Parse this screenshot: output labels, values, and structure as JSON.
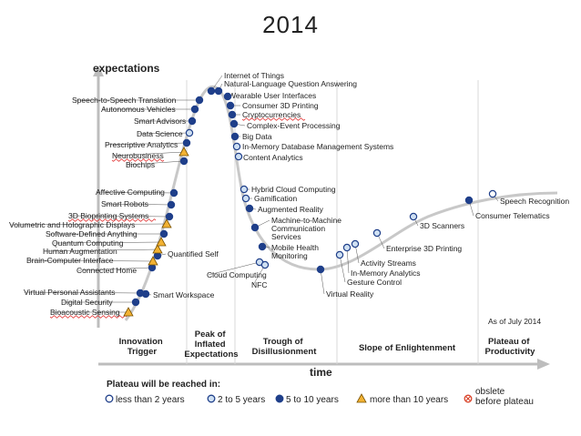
{
  "slide_title": "2014",
  "axes": {
    "y_label": "expectations",
    "x_label": "time"
  },
  "as_of": "As of July 2014",
  "phases": [
    {
      "lines": [
        "Innovation",
        "Trigger"
      ]
    },
    {
      "lines": [
        "Peak of",
        "Inflated",
        "Expectations"
      ]
    },
    {
      "lines": [
        "Trough of",
        "Disillusionment"
      ]
    },
    {
      "lines": [
        "Slope of Enlightenment"
      ]
    },
    {
      "lines": [
        "Plateau of",
        "Productivity"
      ]
    }
  ],
  "legend": {
    "title": "Plateau will be reached in:",
    "items": [
      {
        "label": "less than 2 years",
        "marker": "open-circle"
      },
      {
        "label": "2 to 5 years",
        "marker": "light-blue-circle"
      },
      {
        "label": "5 to 10 years",
        "marker": "dark-blue-circle"
      },
      {
        "label": "more than 10 years",
        "marker": "orange-triangle"
      },
      {
        "label_lines": [
          "obslete",
          "before plateau"
        ],
        "marker": "red-x-circle"
      }
    ]
  },
  "colors": {
    "curve": "#c8c8c8",
    "dark_blue": "#1f3f8a",
    "light_blue": "#cfe0f2",
    "orange": "#f2b233",
    "red": "#d9442a",
    "spellcheck": "#e02020"
  },
  "technologies": [
    {
      "name": "Bioacoustic Sensing",
      "marker": "orange-triangle",
      "phase": "Innovation Trigger",
      "flagged": true
    },
    {
      "name": "Digital Security",
      "marker": "dark-blue-circle",
      "phase": "Innovation Trigger"
    },
    {
      "name": "Virtual Personal Assistants",
      "marker": "dark-blue-circle",
      "phase": "Innovation Trigger"
    },
    {
      "name": "Smart Workspace",
      "marker": "dark-blue-circle",
      "phase": "Innovation Trigger"
    },
    {
      "name": "Connected Home",
      "marker": "dark-blue-circle",
      "phase": "Innovation Trigger"
    },
    {
      "name": "Quantified Self",
      "marker": "dark-blue-circle",
      "phase": "Innovation Trigger"
    },
    {
      "name": "Brain-Computer Interface",
      "marker": "orange-triangle",
      "phase": "Innovation Trigger"
    },
    {
      "name": "Human Augmentation",
      "marker": "orange-triangle",
      "phase": "Innovation Trigger"
    },
    {
      "name": "Quantum Computing",
      "marker": "orange-triangle",
      "phase": "Innovation Trigger"
    },
    {
      "name": "Software-Defined Anything",
      "marker": "dark-blue-circle",
      "phase": "Innovation Trigger"
    },
    {
      "name": "Volumetric and Holographic Displays",
      "marker": "orange-triangle",
      "phase": "Innovation Trigger"
    },
    {
      "name": "3D Bioprinting Systems",
      "marker": "dark-blue-circle",
      "phase": "Innovation Trigger",
      "flagged": true
    },
    {
      "name": "Smart Robots",
      "marker": "dark-blue-circle",
      "phase": "Innovation Trigger"
    },
    {
      "name": "Affective Computing",
      "marker": "dark-blue-circle",
      "phase": "Innovation Trigger"
    },
    {
      "name": "Biochips",
      "marker": "dark-blue-circle",
      "phase": "Innovation Trigger"
    },
    {
      "name": "Neurobusiness",
      "marker": "orange-triangle",
      "phase": "Innovation Trigger",
      "flagged": true
    },
    {
      "name": "Prescriptive Analytics",
      "marker": "dark-blue-circle",
      "phase": "Innovation Trigger"
    },
    {
      "name": "Data Science",
      "marker": "light-blue-circle",
      "phase": "Innovation Trigger"
    },
    {
      "name": "Smart Advisors",
      "marker": "dark-blue-circle",
      "phase": "Innovation Trigger"
    },
    {
      "name": "Autonomous Vehicles",
      "marker": "dark-blue-circle",
      "phase": "Innovation Trigger"
    },
    {
      "name": "Speech-to-Speech Translation",
      "marker": "dark-blue-circle",
      "phase": "Innovation Trigger"
    },
    {
      "name": "Internet of Things",
      "marker": "dark-blue-circle",
      "phase": "Peak of Inflated Expectations"
    },
    {
      "name": "Natural-Language Question Answering",
      "marker": "dark-blue-circle",
      "phase": "Peak of Inflated Expectations"
    },
    {
      "name": "Wearable User Interfaces",
      "marker": "dark-blue-circle",
      "phase": "Peak of Inflated Expectations"
    },
    {
      "name": "Consumer 3D Printing",
      "marker": "dark-blue-circle",
      "phase": "Peak of Inflated Expectations"
    },
    {
      "name": "Cryptocurrencies",
      "marker": "dark-blue-circle",
      "phase": "Peak of Inflated Expectations",
      "flagged": true
    },
    {
      "name": "Complex-Event Processing",
      "marker": "dark-blue-circle",
      "phase": "Peak of Inflated Expectations"
    },
    {
      "name": "Big Data",
      "marker": "dark-blue-circle",
      "phase": "Peak of Inflated Expectations"
    },
    {
      "name": "In-Memory Database Management Systems",
      "marker": "light-blue-circle",
      "phase": "Peak of Inflated Expectations"
    },
    {
      "name": "Content Analytics",
      "marker": "light-blue-circle",
      "phase": "Peak of Inflated Expectations"
    },
    {
      "name": "Hybrid Cloud Computing",
      "marker": "light-blue-circle",
      "phase": "Trough of Disillusionment"
    },
    {
      "name": "Gamification",
      "marker": "light-blue-circle",
      "phase": "Trough of Disillusionment"
    },
    {
      "name": "Augmented Reality",
      "marker": "dark-blue-circle",
      "phase": "Trough of Disillusionment"
    },
    {
      "name": "Machine-to-Machine Communication Services",
      "marker": "dark-blue-circle",
      "phase": "Trough of Disillusionment"
    },
    {
      "name": "Mobile Health Monitoring",
      "marker": "dark-blue-circle",
      "phase": "Trough of Disillusionment"
    },
    {
      "name": "Cloud Computing",
      "marker": "light-blue-circle",
      "phase": "Trough of Disillusionment"
    },
    {
      "name": "NFC",
      "marker": "light-blue-circle",
      "phase": "Trough of Disillusionment"
    },
    {
      "name": "Virtual Reality",
      "marker": "dark-blue-circle",
      "phase": "Trough of Disillusionment"
    },
    {
      "name": "Gesture Control",
      "marker": "light-blue-circle",
      "phase": "Slope of Enlightenment"
    },
    {
      "name": "In-Memory Analytics",
      "marker": "light-blue-circle",
      "phase": "Slope of Enlightenment"
    },
    {
      "name": "Activity Streams",
      "marker": "light-blue-circle",
      "phase": "Slope of Enlightenment"
    },
    {
      "name": "Enterprise 3D Printing",
      "marker": "light-blue-circle",
      "phase": "Slope of Enlightenment"
    },
    {
      "name": "3D Scanners",
      "marker": "light-blue-circle",
      "phase": "Slope of Enlightenment"
    },
    {
      "name": "Consumer Telematics",
      "marker": "dark-blue-circle",
      "phase": "Slope of Enlightenment"
    },
    {
      "name": "Speech Recognition",
      "marker": "open-circle",
      "phase": "Slope of Enlightenment"
    }
  ]
}
